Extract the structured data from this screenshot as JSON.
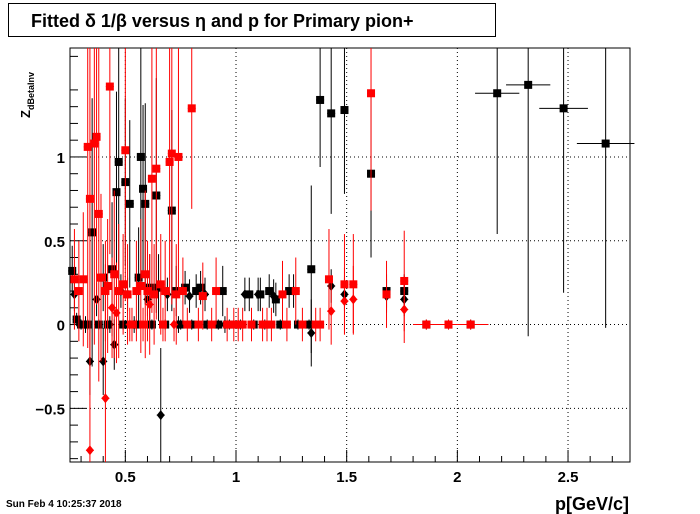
{
  "title": "Fitted δ 1/β versus η and p for Primary pion+",
  "footer": "Sun Feb  4 10:25:37 2018",
  "chart_data": {
    "type": "scatter",
    "title": "Fitted δ 1/β versus η and p for Primary pion+",
    "xlabel": "p[GeV/c]",
    "ylabel": "Z",
    "ylabel_sub": "dBetaInv",
    "xlim": [
      0.25,
      2.78
    ],
    "ylim": [
      -0.82,
      1.65
    ],
    "xticks": [
      0.5,
      1,
      1.5,
      2,
      2.5
    ],
    "xtick_labels": [
      "0.5",
      "1",
      "1.5",
      "2",
      "2.5"
    ],
    "yticks": [
      -0.5,
      0,
      0.5,
      1
    ],
    "ytick_labels": [
      "−0.5",
      "0",
      "0.5",
      "1"
    ],
    "grid": true,
    "series": [
      {
        "color": "#000000",
        "marker": "square",
        "points": [
          {
            "x": 0.26,
            "y": 0.32,
            "e": 0.15
          },
          {
            "x": 0.28,
            "y": 0.03,
            "e": 0.04
          },
          {
            "x": 0.3,
            "y": 0.0,
            "e": 0.03
          },
          {
            "x": 0.33,
            "y": 0.0,
            "e": 0.03
          },
          {
            "x": 0.35,
            "y": 0.55,
            "e": 0.8
          },
          {
            "x": 0.38,
            "y": 0.0,
            "e": 0.03
          },
          {
            "x": 0.4,
            "y": 0.28,
            "e": 0.2
          },
          {
            "x": 0.42,
            "y": 0.0,
            "e": 0.03
          },
          {
            "x": 0.44,
            "y": 0.33,
            "e": 0.4
          },
          {
            "x": 0.46,
            "y": 0.79,
            "e": 0.6
          },
          {
            "x": 0.47,
            "y": 0.97,
            "e": 0.7
          },
          {
            "x": 0.49,
            "y": 0.0,
            "e": 0.03
          },
          {
            "x": 0.5,
            "y": 0.85,
            "e": 0.5
          },
          {
            "x": 0.52,
            "y": 0.72,
            "e": 0.5
          },
          {
            "x": 0.55,
            "y": 0.0,
            "e": 0.03
          },
          {
            "x": 0.56,
            "y": 0.28,
            "e": 0.3
          },
          {
            "x": 0.57,
            "y": 1.0,
            "e": 0.7
          },
          {
            "x": 0.58,
            "y": 0.81,
            "e": 0.5
          },
          {
            "x": 0.59,
            "y": 0.72,
            "e": 0.6
          },
          {
            "x": 0.61,
            "y": 0.22,
            "e": 0.2
          },
          {
            "x": 0.62,
            "y": 0.0,
            "e": 0.03
          },
          {
            "x": 0.64,
            "y": 0.77,
            "e": 0.7
          },
          {
            "x": 0.65,
            "y": 0.22,
            "e": 0.2
          },
          {
            "x": 0.68,
            "y": 0.0,
            "e": 0.03
          },
          {
            "x": 0.71,
            "y": 0.68,
            "e": 0.6
          },
          {
            "x": 0.73,
            "y": 0.2,
            "e": 0.15
          },
          {
            "x": 0.75,
            "y": 0.0,
            "e": 0.03
          },
          {
            "x": 0.77,
            "y": 0.22,
            "e": 0.1
          },
          {
            "x": 0.8,
            "y": 0.0,
            "e": 0.03
          },
          {
            "x": 0.82,
            "y": 0.2,
            "e": 0.1
          },
          {
            "x": 0.84,
            "y": 0.22,
            "e": 0.1
          },
          {
            "x": 0.87,
            "y": 0.0,
            "e": 0.03
          },
          {
            "x": 0.92,
            "y": 0.0,
            "e": 0.03
          },
          {
            "x": 0.94,
            "y": 0.2,
            "e": 0.15
          },
          {
            "x": 0.97,
            "y": 0.0,
            "e": 0.03
          },
          {
            "x": 1.02,
            "y": 0.0,
            "e": 0.03
          },
          {
            "x": 1.06,
            "y": 0.18,
            "e": 0.1
          },
          {
            "x": 1.08,
            "y": 0.0,
            "e": 0.03
          },
          {
            "x": 1.11,
            "y": 0.18,
            "e": 0.1
          },
          {
            "x": 1.13,
            "y": 0.0,
            "e": 0.03
          },
          {
            "x": 1.15,
            "y": 0.2,
            "e": 0.1
          },
          {
            "x": 1.18,
            "y": 0.15,
            "e": 0.1
          },
          {
            "x": 1.2,
            "y": 0.0,
            "e": 0.03
          },
          {
            "x": 1.24,
            "y": 0.2,
            "e": 0.1
          },
          {
            "x": 1.28,
            "y": 0.0,
            "e": 0.03
          },
          {
            "x": 1.33,
            "y": 0.0,
            "e": 0.03
          },
          {
            "x": 1.34,
            "y": 0.33,
            "e": 0.5
          },
          {
            "x": 1.38,
            "y": 1.34,
            "e": 0.4
          },
          {
            "x": 1.43,
            "y": 1.26,
            "e": 0.6
          },
          {
            "x": 1.49,
            "y": 1.28,
            "e": 0.5
          },
          {
            "x": 1.61,
            "y": 0.9,
            "e": 0.5
          },
          {
            "x": 1.68,
            "y": 0.2,
            "e": 0.1
          },
          {
            "x": 1.76,
            "y": 0.2,
            "e": 0.1
          },
          {
            "x": 1.86,
            "y": 0.0,
            "e": 0.03,
            "w": 0.06
          },
          {
            "x": 1.96,
            "y": 0.0,
            "e": 0.03,
            "w": 0.06
          },
          {
            "x": 2.06,
            "y": 0.0,
            "e": 0.03,
            "w": 0.08
          },
          {
            "x": 2.18,
            "y": 1.38,
            "e": 0.84,
            "w": 0.1
          },
          {
            "x": 2.32,
            "y": 1.43,
            "e": 1.5,
            "w": 0.1
          },
          {
            "x": 2.48,
            "y": 1.29,
            "e": 1.1,
            "w": 0.11
          },
          {
            "x": 2.67,
            "y": 1.08,
            "e": 1.1,
            "w": 0.13
          }
        ]
      },
      {
        "color": "#000000",
        "marker": "diamond",
        "points": [
          {
            "x": 0.27,
            "y": 0.18,
            "e": 0.1
          },
          {
            "x": 0.32,
            "y": 0.0,
            "e": 0.05
          },
          {
            "x": 0.34,
            "y": -0.22,
            "e": 0.2
          },
          {
            "x": 0.37,
            "y": 0.15,
            "e": 0.1
          },
          {
            "x": 0.4,
            "y": -0.22,
            "e": 0.2
          },
          {
            "x": 0.43,
            "y": 0.0,
            "e": 0.05
          },
          {
            "x": 0.45,
            "y": -0.12,
            "e": 0.15
          },
          {
            "x": 0.48,
            "y": 0.2,
            "e": 0.1
          },
          {
            "x": 0.51,
            "y": 0.18,
            "e": 0.1
          },
          {
            "x": 0.54,
            "y": 0.0,
            "e": 0.05
          },
          {
            "x": 0.6,
            "y": 0.15,
            "e": 0.1
          },
          {
            "x": 0.66,
            "y": -0.54,
            "e": 0.4
          },
          {
            "x": 0.69,
            "y": 0.18,
            "e": 0.1
          },
          {
            "x": 0.74,
            "y": 0.0,
            "e": 0.05
          },
          {
            "x": 0.79,
            "y": 0.17,
            "e": 0.1
          },
          {
            "x": 0.86,
            "y": 0.18,
            "e": 0.1
          },
          {
            "x": 0.95,
            "y": 0.0,
            "e": 0.05
          },
          {
            "x": 1.04,
            "y": 0.18,
            "e": 0.1
          },
          {
            "x": 1.1,
            "y": 0.18,
            "e": 0.1
          },
          {
            "x": 1.17,
            "y": 0.17,
            "e": 0.1
          },
          {
            "x": 1.26,
            "y": 0.2,
            "e": 0.1
          },
          {
            "x": 1.34,
            "y": -0.05,
            "e": 0.2
          },
          {
            "x": 1.43,
            "y": 0.23,
            "e": 0.1
          },
          {
            "x": 1.49,
            "y": 0.18,
            "e": 0.1
          },
          {
            "x": 1.68,
            "y": 0.17,
            "e": 0.1
          },
          {
            "x": 1.76,
            "y": 0.15,
            "e": 0.1
          }
        ]
      },
      {
        "color": "#ff0000",
        "marker": "square",
        "points": [
          {
            "x": 0.27,
            "y": 0.27,
            "e": 0.3
          },
          {
            "x": 0.29,
            "y": 0.2,
            "e": 0.3
          },
          {
            "x": 0.31,
            "y": 0.27,
            "e": 0.4
          },
          {
            "x": 0.33,
            "y": 1.06,
            "e": 1.2
          },
          {
            "x": 0.34,
            "y": 0.75,
            "e": 1.0
          },
          {
            "x": 0.36,
            "y": 1.08,
            "e": 1.2
          },
          {
            "x": 0.37,
            "y": 1.12,
            "e": 1.0
          },
          {
            "x": 0.38,
            "y": 0.66,
            "e": 1.0
          },
          {
            "x": 0.39,
            "y": 0.28,
            "e": 0.5
          },
          {
            "x": 0.41,
            "y": 0.2,
            "e": 0.3
          },
          {
            "x": 0.42,
            "y": 0.23,
            "e": 0.4
          },
          {
            "x": 0.43,
            "y": 1.42,
            "e": 1.0
          },
          {
            "x": 0.45,
            "y": 0.3,
            "e": 0.5
          },
          {
            "x": 0.47,
            "y": 0.2,
            "e": 0.4
          },
          {
            "x": 0.49,
            "y": 0.24,
            "e": 0.3
          },
          {
            "x": 0.5,
            "y": 1.04,
            "e": 0.9
          },
          {
            "x": 0.51,
            "y": 0.18,
            "e": 0.3
          },
          {
            "x": 0.53,
            "y": 0.0,
            "e": 0.1
          },
          {
            "x": 0.55,
            "y": 0.2,
            "e": 0.3
          },
          {
            "x": 0.57,
            "y": 0.23,
            "e": 0.4
          },
          {
            "x": 0.58,
            "y": 0.0,
            "e": 0.1
          },
          {
            "x": 0.59,
            "y": 0.3,
            "e": 0.5
          },
          {
            "x": 0.6,
            "y": 0.2,
            "e": 0.3
          },
          {
            "x": 0.62,
            "y": 0.87,
            "e": 0.8
          },
          {
            "x": 0.63,
            "y": 0.18,
            "e": 0.3
          },
          {
            "x": 0.64,
            "y": 0.93,
            "e": 0.9
          },
          {
            "x": 0.66,
            "y": 0.24,
            "e": 0.3
          },
          {
            "x": 0.67,
            "y": 0.0,
            "e": 0.1
          },
          {
            "x": 0.68,
            "y": 0.2,
            "e": 0.3
          },
          {
            "x": 0.7,
            "y": 0.97,
            "e": 0.8
          },
          {
            "x": 0.71,
            "y": 1.02,
            "e": 0.9
          },
          {
            "x": 0.73,
            "y": 0.18,
            "e": 0.3
          },
          {
            "x": 0.74,
            "y": 1.0,
            "e": 0.8
          },
          {
            "x": 0.76,
            "y": 0.2,
            "e": 0.2
          },
          {
            "x": 0.78,
            "y": 0.0,
            "e": 0.1
          },
          {
            "x": 0.8,
            "y": 1.29,
            "e": 0.6
          },
          {
            "x": 0.83,
            "y": 0.0,
            "e": 0.1
          },
          {
            "x": 0.85,
            "y": 0.17,
            "e": 0.2
          },
          {
            "x": 0.89,
            "y": 0.0,
            "e": 0.1
          },
          {
            "x": 0.91,
            "y": 0.2,
            "e": 0.2
          },
          {
            "x": 0.96,
            "y": 0.0,
            "e": 0.1
          },
          {
            "x": 0.99,
            "y": 0.0,
            "e": 0.1
          },
          {
            "x": 1.03,
            "y": 0.0,
            "e": 0.1
          },
          {
            "x": 1.07,
            "y": 0.0,
            "e": 0.1
          },
          {
            "x": 1.12,
            "y": 0.0,
            "e": 0.1
          },
          {
            "x": 1.14,
            "y": 0.0,
            "e": 0.1
          },
          {
            "x": 1.16,
            "y": 0.0,
            "e": 0.1
          },
          {
            "x": 1.21,
            "y": 0.18,
            "e": 0.2
          },
          {
            "x": 1.23,
            "y": 0.0,
            "e": 0.1
          },
          {
            "x": 1.27,
            "y": 0.2,
            "e": 0.2
          },
          {
            "x": 1.3,
            "y": 0.0,
            "e": 0.1
          },
          {
            "x": 1.36,
            "y": 0.0,
            "e": 0.1
          },
          {
            "x": 1.38,
            "y": 0.0,
            "e": 0.1
          },
          {
            "x": 1.42,
            "y": 0.27,
            "e": 0.3
          },
          {
            "x": 1.49,
            "y": 0.24,
            "e": 0.3
          },
          {
            "x": 1.53,
            "y": 0.24,
            "e": 0.3
          },
          {
            "x": 1.61,
            "y": 1.38,
            "e": 0.7
          },
          {
            "x": 1.68,
            "y": 0.18,
            "e": 0.2
          },
          {
            "x": 1.76,
            "y": 0.26,
            "e": 0.3
          },
          {
            "x": 1.86,
            "y": 0.0,
            "e": 0.03,
            "w": 0.06
          },
          {
            "x": 1.96,
            "y": 0.0,
            "e": 0.03,
            "w": 0.06
          },
          {
            "x": 2.06,
            "y": 0.0,
            "e": 0.03,
            "w": 0.08
          }
        ]
      },
      {
        "color": "#ff0000",
        "marker": "diamond",
        "points": [
          {
            "x": 0.34,
            "y": -0.75,
            "e": 0.7
          },
          {
            "x": 0.41,
            "y": -0.44,
            "e": 0.8
          },
          {
            "x": 0.44,
            "y": 0.1,
            "e": 0.3
          },
          {
            "x": 0.46,
            "y": 0.07,
            "e": 0.3
          },
          {
            "x": 0.52,
            "y": 0.0,
            "e": 0.1
          },
          {
            "x": 0.61,
            "y": 0.12,
            "e": 0.3
          },
          {
            "x": 0.72,
            "y": 0.0,
            "e": 0.1
          },
          {
            "x": 1.01,
            "y": 0.0,
            "e": 0.1
          },
          {
            "x": 1.43,
            "y": 0.08,
            "e": 0.2
          },
          {
            "x": 1.49,
            "y": 0.14,
            "e": 0.2
          },
          {
            "x": 1.53,
            "y": 0.15,
            "e": 0.2
          },
          {
            "x": 1.76,
            "y": 0.09,
            "e": 0.2
          }
        ]
      }
    ]
  }
}
